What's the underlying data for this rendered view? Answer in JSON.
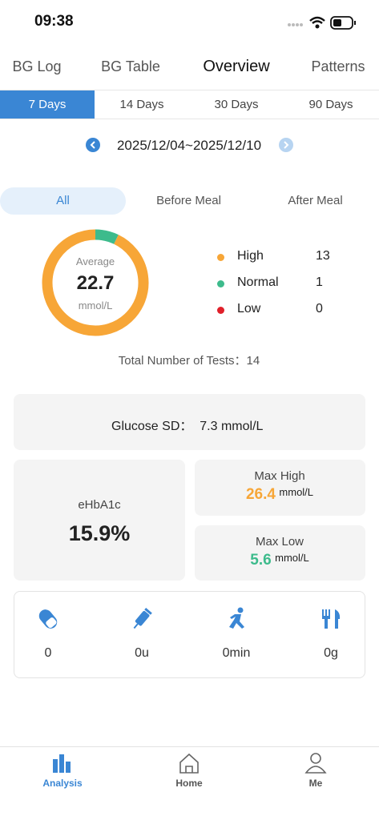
{
  "status_bar": {
    "time": "09:38"
  },
  "tabs": [
    "BG Log",
    "BG Table",
    "Overview",
    "Patterns"
  ],
  "range_tabs": [
    "7 Days",
    "14 Days",
    "30 Days",
    "90 Days"
  ],
  "date_range": "2025/12/04~2025/12/10",
  "filters": [
    "All",
    "Before Meal",
    "After Meal"
  ],
  "summary": {
    "average_label": "Average",
    "average": "22.7",
    "unit": "mmol/L",
    "levels": [
      {
        "name": "High",
        "color": "#f7a637",
        "count": 13
      },
      {
        "name": "Normal",
        "color": "#3dbb8c",
        "count": 1
      },
      {
        "name": "Low",
        "color": "#e0202a",
        "count": 0
      }
    ],
    "total_tests": "Total Number of Tests：14"
  },
  "glucose_sd": {
    "label": "Glucose SD：",
    "value": "7.3 mmol/L"
  },
  "ehba1c": {
    "label": "eHbA1c",
    "value": "15.9%"
  },
  "max_high": {
    "label": "Max High",
    "value": "26.4",
    "unit": "mmol/L"
  },
  "max_low": {
    "label": "Max Low",
    "value": "5.6",
    "unit": "mmol/L"
  },
  "activity": [
    "0",
    "0u",
    "0min",
    "0g"
  ],
  "nav": [
    "Analysis",
    "Home",
    "Me"
  ]
}
